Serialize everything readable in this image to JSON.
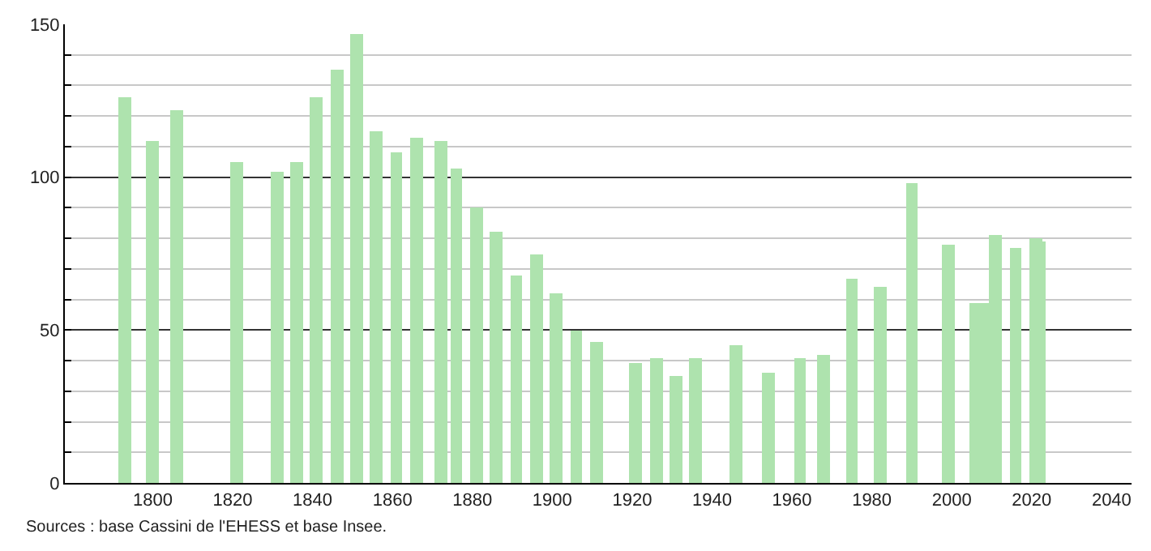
{
  "chart_data": {
    "type": "bar",
    "x": [
      1793,
      1800,
      1806,
      1821,
      1831,
      1836,
      1841,
      1846,
      1851,
      1856,
      1861,
      1866,
      1872,
      1876,
      1881,
      1886,
      1891,
      1896,
      1901,
      1906,
      1911,
      1921,
      1926,
      1931,
      1936,
      1946,
      1954,
      1962,
      1968,
      1975,
      1982,
      1990,
      1999,
      2006,
      2008,
      2011,
      2016,
      2021,
      2022
    ],
    "values": [
      126,
      112,
      122,
      105,
      102,
      105,
      126,
      135,
      147,
      115,
      108,
      113,
      112,
      103,
      90,
      82,
      68,
      75,
      62,
      50,
      46,
      39,
      41,
      35,
      41,
      45,
      36,
      41,
      42,
      67,
      64,
      98,
      78,
      59,
      59,
      81,
      77,
      80,
      79
    ],
    "color": "#aee3ae",
    "xlim": [
      1778,
      2045
    ],
    "xticks": [
      1800,
      1820,
      1840,
      1860,
      1880,
      1900,
      1920,
      1940,
      1960,
      1980,
      2000,
      2020,
      2040
    ],
    "ylim": [
      0,
      150
    ],
    "yticks": [
      0,
      {
        "value": 10,
        "label": null
      },
      {
        "value": 20,
        "label": null
      },
      {
        "value": 30,
        "label": null
      },
      {
        "value": 40,
        "label": null
      },
      50,
      {
        "value": 60,
        "label": null
      },
      {
        "value": 70,
        "label": null
      },
      {
        "value": 80,
        "label": null
      },
      {
        "value": 90,
        "label": null
      },
      100,
      {
        "value": 110,
        "label": null
      },
      {
        "value": 120,
        "label": null
      },
      {
        "value": 130,
        "label": null
      },
      {
        "value": 140,
        "label": null
      },
      150
    ],
    "grid": "y",
    "annotations": [
      "Sources : base Cassini de l'EHESS et base Insee."
    ]
  }
}
